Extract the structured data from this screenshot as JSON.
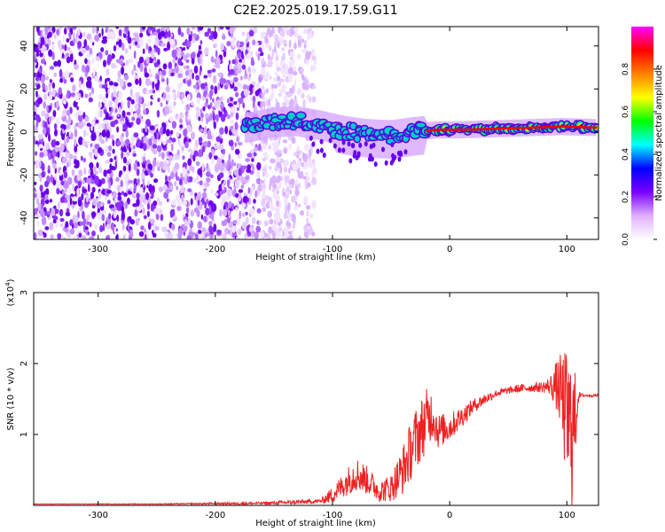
{
  "title": "C2E2.2025.019.17.59.G11",
  "chart_data": [
    {
      "type": "heatmap",
      "xlabel": "Height of straight line (km)",
      "ylabel": "Frequency (Hz)",
      "xlim": [
        -355,
        127
      ],
      "ylim": [
        -50,
        49
      ],
      "x_ticks": [
        -300,
        -200,
        -100,
        0,
        100
      ],
      "y_ticks": [
        -40,
        -20,
        0,
        20,
        40
      ],
      "colorbar": {
        "label": "Normalized spectral amplitude",
        "range": [
          0,
          1
        ],
        "ticks": [
          0.0,
          0.2,
          0.4,
          0.6,
          0.8
        ],
        "stops": [
          "#ffffff",
          "#e0b0ff",
          "#7a00ff",
          "#0000ff",
          "#00ffff",
          "#00ff00",
          "#ffff00",
          "#ff8000",
          "#ff0000",
          "#ff00ff"
        ]
      },
      "ridge": [
        {
          "x": -172,
          "f": 2.0
        },
        {
          "x": -150,
          "f": 4.5
        },
        {
          "x": -130,
          "f": 5.0
        },
        {
          "x": -110,
          "f": 3.0
        },
        {
          "x": -90,
          "f": 0.5
        },
        {
          "x": -70,
          "f": -1.0
        },
        {
          "x": -50,
          "f": -1.5
        },
        {
          "x": -30,
          "f": 0.0
        },
        {
          "x": -10,
          "f": 1.0
        },
        {
          "x": 10,
          "f": 1.0
        },
        {
          "x": 40,
          "f": 1.5
        },
        {
          "x": 70,
          "f": 2.0
        },
        {
          "x": 95,
          "f": 2.5
        },
        {
          "x": 127,
          "f": 2.0
        }
      ]
    },
    {
      "type": "line",
      "xlabel": "Height of straight line (km)",
      "ylabel": "SNR (10 * v/v)",
      "y_scale_label": "(x10",
      "y_scale_exp": "4",
      "y_scale_close": ")",
      "xlim": [
        -355,
        127
      ],
      "ylim": [
        0,
        3
      ],
      "x_ticks": [
        -300,
        -200,
        -100,
        0,
        100
      ],
      "y_ticks": [
        1,
        2,
        3
      ],
      "color": "#ee2222",
      "series": [
        {
          "x": [
            -355,
            -250,
            -160,
            -140,
            -110,
            -100,
            -90,
            -80,
            -70,
            -60,
            -50,
            -40,
            -30,
            -20,
            -15,
            -10,
            0,
            10,
            20,
            30,
            40,
            50,
            60,
            70,
            80,
            85,
            90,
            95,
            100,
            105,
            110,
            115,
            127
          ],
          "y": [
            0.02,
            0.02,
            0.03,
            0.04,
            0.06,
            0.15,
            0.3,
            0.45,
            0.35,
            0.2,
            0.25,
            0.5,
            0.9,
            1.2,
            1.3,
            1.05,
            1.1,
            1.25,
            1.4,
            1.5,
            1.58,
            1.62,
            1.65,
            1.66,
            1.67,
            1.68,
            1.7,
            1.6,
            1.2,
            1.0,
            1.55,
            1.55,
            1.55
          ],
          "noise": [
            0.003,
            0.005,
            0.02,
            0.03,
            0.03,
            0.12,
            0.18,
            0.25,
            0.2,
            0.15,
            0.2,
            0.35,
            0.45,
            0.45,
            0.35,
            0.25,
            0.2,
            0.15,
            0.1,
            0.08,
            0.05,
            0.05,
            0.06,
            0.06,
            0.08,
            0.12,
            0.3,
            0.55,
            1.0,
            1.1,
            0.05,
            0.02,
            0.02
          ]
        }
      ]
    }
  ]
}
